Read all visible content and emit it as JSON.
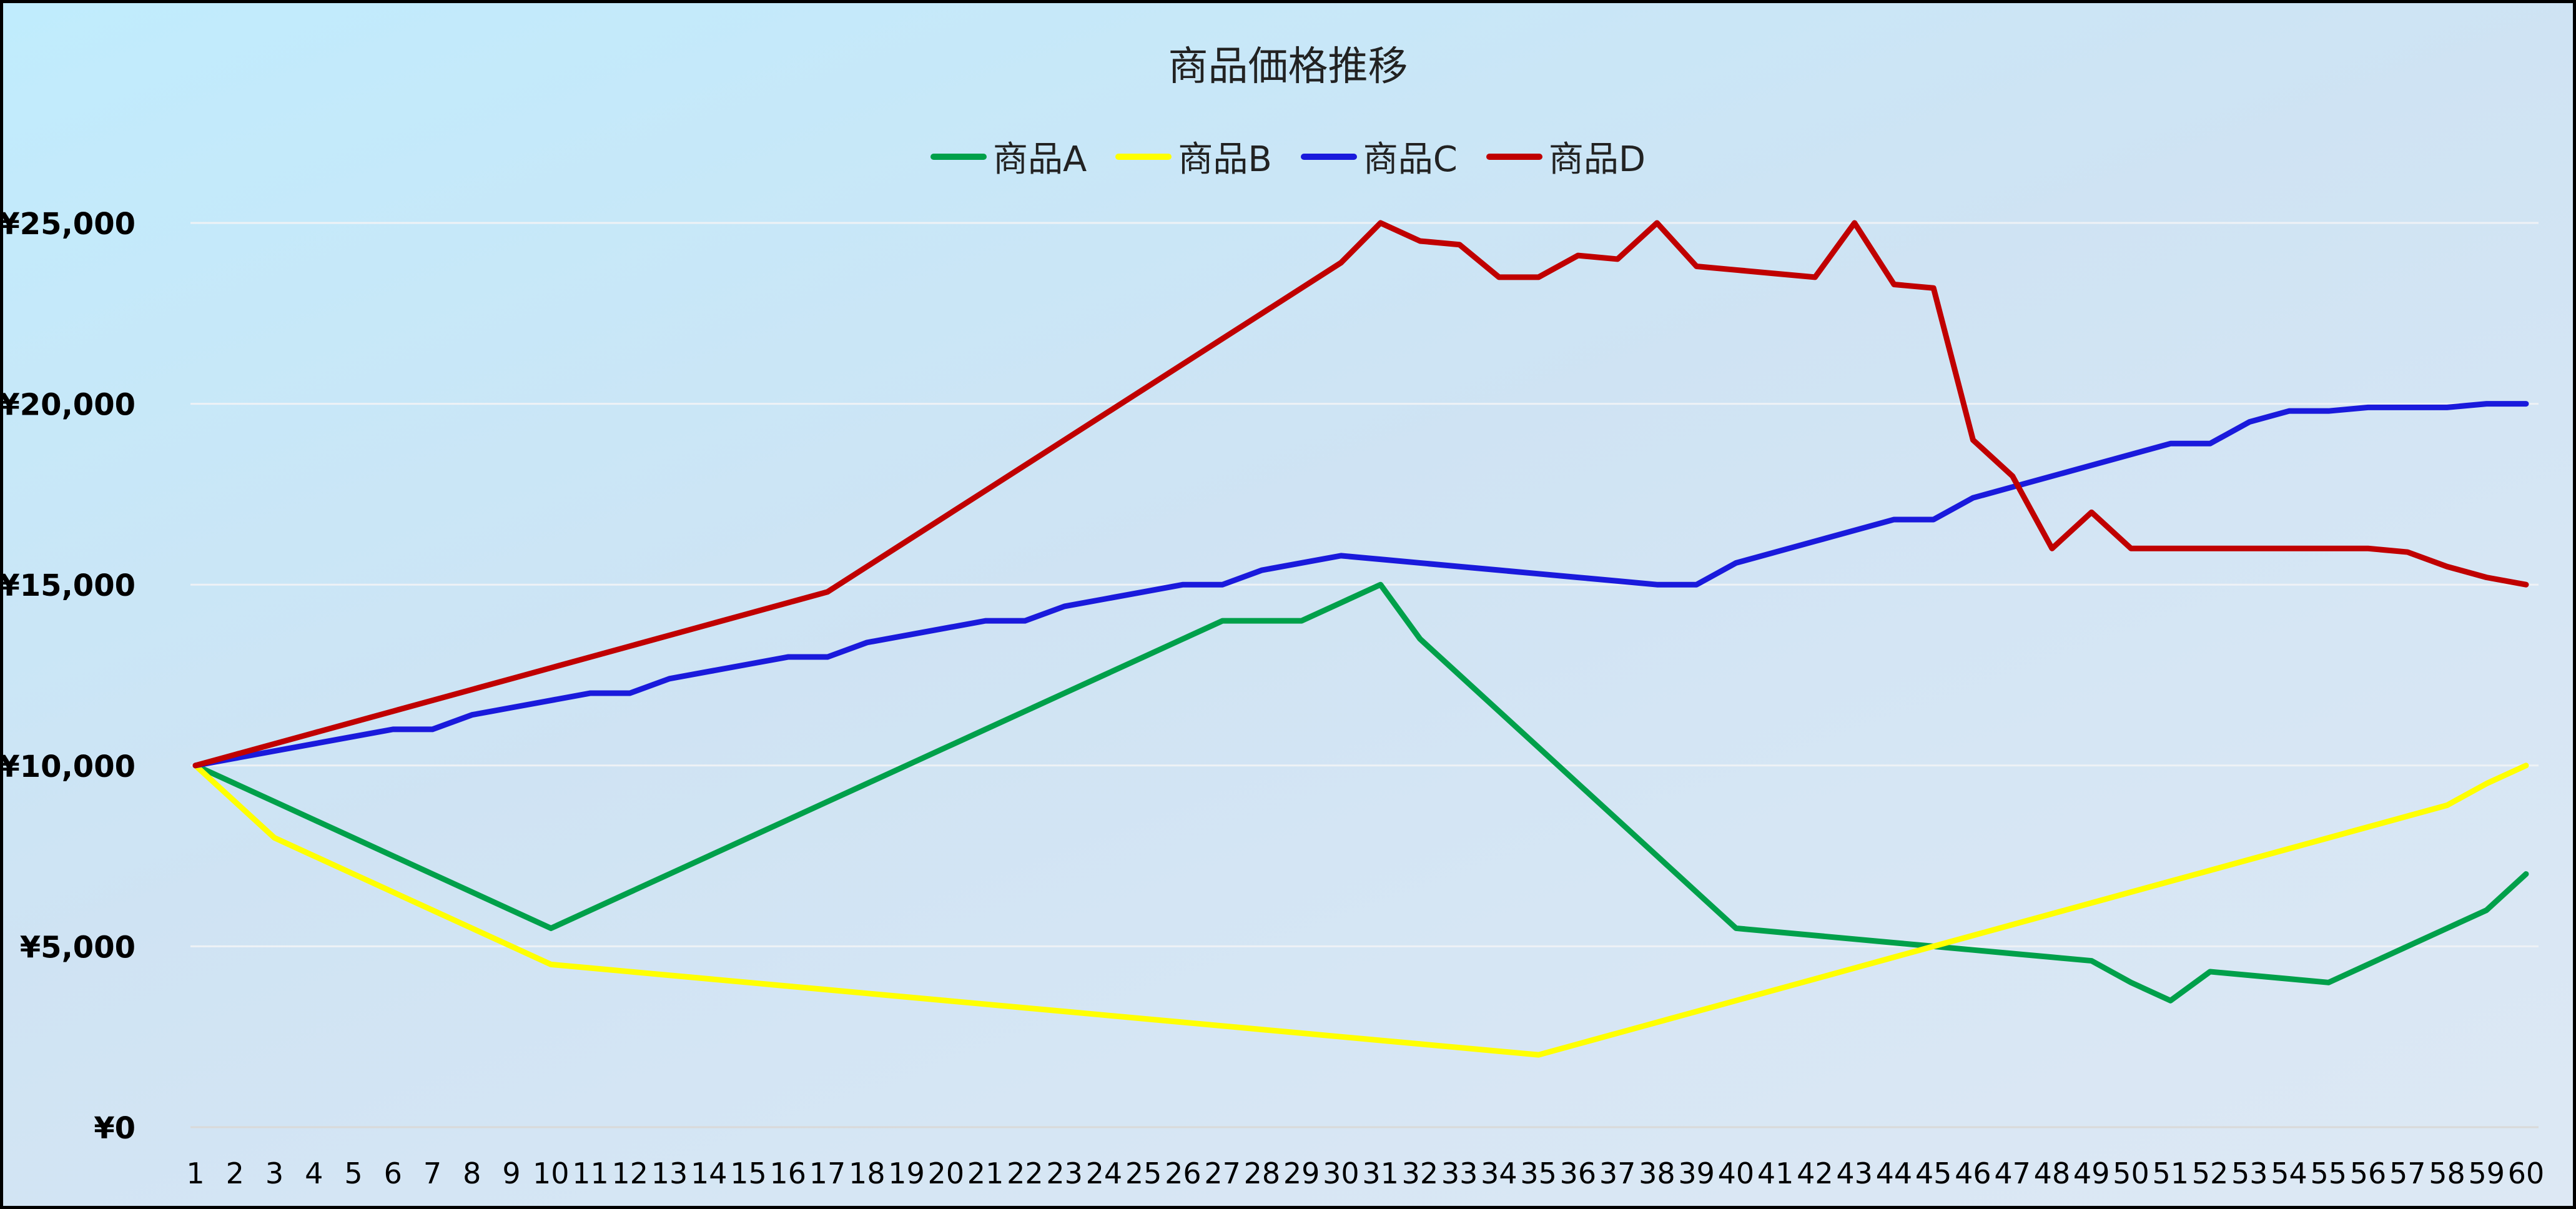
{
  "chart_data": {
    "type": "line",
    "title": "商品価格推移",
    "xlabel": "",
    "ylabel": "",
    "ylim": [
      0,
      25000
    ],
    "y_ticks": [
      "¥0",
      "¥5,000",
      "¥10,000",
      "¥15,000",
      "¥20,000",
      "¥25,000"
    ],
    "y_tick_values": [
      0,
      5000,
      10000,
      15000,
      20000,
      25000
    ],
    "grid": true,
    "legend_position": "top",
    "x": [
      1,
      2,
      3,
      4,
      5,
      6,
      7,
      8,
      9,
      10,
      11,
      12,
      13,
      14,
      15,
      16,
      17,
      18,
      19,
      20,
      21,
      22,
      23,
      24,
      25,
      26,
      27,
      28,
      29,
      30,
      31,
      32,
      33,
      34,
      35,
      36,
      37,
      38,
      39,
      40,
      41,
      42,
      43,
      44,
      45,
      46,
      47,
      48,
      49,
      50,
      51,
      52,
      53,
      54,
      55,
      56,
      57,
      58,
      59,
      60
    ],
    "series": [
      {
        "name": "商品A",
        "color": "#00a04a",
        "values": [
          10000,
          9500,
          9000,
          8500,
          8000,
          7500,
          7000,
          6500,
          6000,
          5500,
          6000,
          6500,
          7000,
          7500,
          8000,
          8500,
          9000,
          9500,
          10000,
          10500,
          11000,
          11500,
          12000,
          12500,
          13000,
          13500,
          14000,
          14000,
          14000,
          14500,
          15000,
          13500,
          12500,
          11500,
          10500,
          9500,
          8500,
          7500,
          6500,
          5500,
          5400,
          5300,
          5200,
          5100,
          5000,
          4900,
          4800,
          4700,
          4600,
          4000,
          3500,
          4300,
          4200,
          4100,
          4000,
          4500,
          5000,
          5500,
          6000,
          7000
        ]
      },
      {
        "name": "商品B",
        "color": "#ffff00",
        "values": [
          10000,
          9000,
          8000,
          7500,
          7000,
          6500,
          6000,
          5500,
          5000,
          4500,
          4400,
          4300,
          4200,
          4100,
          4000,
          3900,
          3800,
          3700,
          3600,
          3500,
          3400,
          3300,
          3200,
          3100,
          3000,
          2900,
          2800,
          2700,
          2600,
          2500,
          2400,
          2300,
          2200,
          2100,
          2000,
          2300,
          2600,
          2900,
          3200,
          3500,
          3800,
          4100,
          4400,
          4700,
          5000,
          5300,
          5600,
          5900,
          6200,
          6500,
          6800,
          7100,
          7400,
          7700,
          8000,
          8300,
          8600,
          8900,
          9500,
          10000
        ]
      },
      {
        "name": "商品C",
        "color": "#1a1adc",
        "values": [
          10000,
          10200,
          10400,
          10600,
          10800,
          11000,
          11000,
          11400,
          11600,
          11800,
          12000,
          12000,
          12400,
          12600,
          12800,
          13000,
          13000,
          13400,
          13600,
          13800,
          14000,
          14000,
          14400,
          14600,
          14800,
          15000,
          15000,
          15400,
          15600,
          15800,
          15700,
          15600,
          15500,
          15400,
          15300,
          15200,
          15100,
          15000,
          15000,
          15600,
          15900,
          16200,
          16500,
          16800,
          16800,
          17400,
          17700,
          18000,
          18300,
          18600,
          18900,
          18900,
          19500,
          19800,
          19800,
          19900,
          19900,
          19900,
          20000,
          20000
        ]
      },
      {
        "name": "商品D",
        "color": "#c00000",
        "values": [
          10000,
          10300,
          10600,
          10900,
          11200,
          11500,
          11800,
          12100,
          12400,
          12700,
          13000,
          13300,
          13600,
          13900,
          14200,
          14500,
          14800,
          15500,
          16200,
          16900,
          17600,
          18300,
          19000,
          19700,
          20400,
          21100,
          21800,
          22500,
          23200,
          23900,
          25000,
          24500,
          24400,
          23500,
          23500,
          24100,
          24000,
          25000,
          23800,
          23700,
          23600,
          23500,
          25000,
          23300,
          23200,
          19000,
          18000,
          16000,
          17000,
          16000,
          16000,
          16000,
          16000,
          16000,
          16000,
          16000,
          15900,
          15500,
          15200,
          15000
        ]
      }
    ]
  }
}
